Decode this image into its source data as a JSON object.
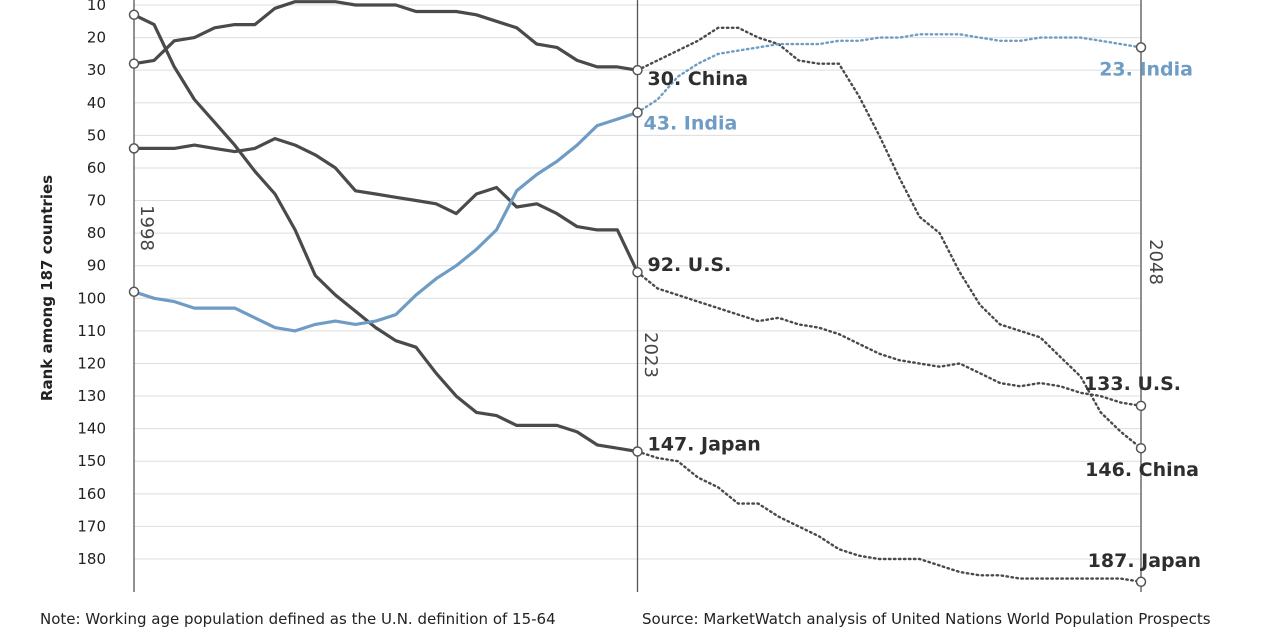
{
  "chart_data": {
    "type": "line",
    "ylabel": "Rank among 187 countries",
    "ylim": [
      1,
      187
    ],
    "y_inverted": true,
    "y_ticks": [
      10,
      20,
      30,
      40,
      50,
      60,
      70,
      80,
      90,
      100,
      110,
      120,
      130,
      140,
      150,
      160,
      170,
      180
    ],
    "xlim": [
      1998,
      2048
    ],
    "marker_years": [
      {
        "label": "1998",
        "x": 1998
      },
      {
        "label": "2023",
        "x": 2023
      },
      {
        "label": "2048",
        "x": 2048
      }
    ],
    "colors": {
      "grey": "#4a4a4a",
      "blue": "#6f9cc4"
    },
    "series": [
      {
        "color": "grey",
        "historical": [
          [
            1998,
            13
          ],
          [
            1999,
            16
          ],
          [
            2000,
            29
          ],
          [
            2001,
            39
          ],
          [
            2002,
            46
          ],
          [
            2003,
            53
          ],
          [
            2004,
            61
          ],
          [
            2005,
            68
          ],
          [
            2006,
            79
          ],
          [
            2007,
            93
          ],
          [
            2008,
            99
          ],
          [
            2009,
            104
          ],
          [
            2010,
            109
          ],
          [
            2011,
            113
          ],
          [
            2012,
            115
          ],
          [
            2013,
            123
          ],
          [
            2014,
            130
          ],
          [
            2015,
            135
          ],
          [
            2016,
            136
          ],
          [
            2017,
            139
          ],
          [
            2018,
            139
          ],
          [
            2019,
            139
          ],
          [
            2020,
            141
          ],
          [
            2021,
            145
          ],
          [
            2022,
            146
          ],
          [
            2023,
            147
          ]
        ],
        "projected": [
          [
            2023,
            147
          ],
          [
            2024,
            149
          ],
          [
            2025,
            150
          ],
          [
            2026,
            155
          ],
          [
            2027,
            158
          ],
          [
            2028,
            163
          ],
          [
            2029,
            163
          ],
          [
            2030,
            167
          ],
          [
            2031,
            170
          ],
          [
            2032,
            173
          ],
          [
            2033,
            177
          ],
          [
            2034,
            179
          ],
          [
            2035,
            180
          ],
          [
            2036,
            180
          ],
          [
            2037,
            180
          ],
          [
            2038,
            182
          ],
          [
            2039,
            184
          ],
          [
            2040,
            185
          ],
          [
            2041,
            185
          ],
          [
            2042,
            186
          ],
          [
            2043,
            186
          ],
          [
            2044,
            186
          ],
          [
            2045,
            186
          ],
          [
            2046,
            186
          ],
          [
            2047,
            186
          ],
          [
            2048,
            187
          ]
        ]
      },
      {
        "color": "grey",
        "historical": [
          [
            1998,
            28
          ],
          [
            1999,
            27
          ],
          [
            2000,
            21
          ],
          [
            2001,
            20
          ],
          [
            2002,
            17
          ],
          [
            2003,
            16
          ],
          [
            2004,
            16
          ],
          [
            2005,
            11
          ],
          [
            2006,
            9
          ],
          [
            2007,
            9
          ],
          [
            2008,
            9
          ],
          [
            2009,
            10
          ],
          [
            2010,
            10
          ],
          [
            2011,
            10
          ],
          [
            2012,
            12
          ],
          [
            2013,
            12
          ],
          [
            2014,
            12
          ],
          [
            2015,
            13
          ],
          [
            2016,
            15
          ],
          [
            2017,
            17
          ],
          [
            2018,
            22
          ],
          [
            2019,
            23
          ],
          [
            2020,
            27
          ],
          [
            2021,
            29
          ],
          [
            2022,
            29
          ],
          [
            2023,
            30
          ]
        ],
        "projected": [
          [
            2023,
            30
          ],
          [
            2024,
            27
          ],
          [
            2025,
            24
          ],
          [
            2026,
            21
          ],
          [
            2027,
            17
          ],
          [
            2028,
            17
          ],
          [
            2029,
            20
          ],
          [
            2030,
            22
          ],
          [
            2031,
            27
          ],
          [
            2032,
            28
          ],
          [
            2033,
            28
          ],
          [
            2034,
            38
          ],
          [
            2035,
            50
          ],
          [
            2036,
            63
          ],
          [
            2037,
            75
          ],
          [
            2038,
            80
          ],
          [
            2039,
            92
          ],
          [
            2040,
            102
          ],
          [
            2041,
            108
          ],
          [
            2042,
            110
          ],
          [
            2043,
            112
          ],
          [
            2044,
            118
          ],
          [
            2045,
            124
          ],
          [
            2046,
            135
          ],
          [
            2047,
            141
          ],
          [
            2048,
            146
          ]
        ]
      },
      {
        "color": "grey",
        "historical": [
          [
            1998,
            54
          ],
          [
            1999,
            54
          ],
          [
            2000,
            54
          ],
          [
            2001,
            53
          ],
          [
            2002,
            54
          ],
          [
            2003,
            55
          ],
          [
            2004,
            54
          ],
          [
            2005,
            51
          ],
          [
            2006,
            53
          ],
          [
            2007,
            56
          ],
          [
            2008,
            60
          ],
          [
            2009,
            67
          ],
          [
            2010,
            68
          ],
          [
            2011,
            69
          ],
          [
            2012,
            70
          ],
          [
            2013,
            71
          ],
          [
            2014,
            74
          ],
          [
            2015,
            68
          ],
          [
            2016,
            66
          ],
          [
            2017,
            72
          ],
          [
            2018,
            71
          ],
          [
            2019,
            74
          ],
          [
            2020,
            78
          ],
          [
            2021,
            79
          ],
          [
            2022,
            79
          ],
          [
            2023,
            92
          ]
        ],
        "projected": [
          [
            2023,
            92
          ],
          [
            2024,
            97
          ],
          [
            2025,
            99
          ],
          [
            2026,
            101
          ],
          [
            2027,
            103
          ],
          [
            2028,
            105
          ],
          [
            2029,
            107
          ],
          [
            2030,
            106
          ],
          [
            2031,
            108
          ],
          [
            2032,
            109
          ],
          [
            2033,
            111
          ],
          [
            2034,
            114
          ],
          [
            2035,
            117
          ],
          [
            2036,
            119
          ],
          [
            2037,
            120
          ],
          [
            2038,
            121
          ],
          [
            2039,
            120
          ],
          [
            2040,
            123
          ],
          [
            2041,
            126
          ],
          [
            2042,
            127
          ],
          [
            2043,
            126
          ],
          [
            2044,
            127
          ],
          [
            2045,
            129
          ],
          [
            2046,
            130
          ],
          [
            2047,
            132
          ],
          [
            2048,
            133
          ]
        ]
      },
      {
        "color": "blue",
        "historical": [
          [
            1998,
            98
          ],
          [
            1999,
            100
          ],
          [
            2000,
            101
          ],
          [
            2001,
            103
          ],
          [
            2002,
            103
          ],
          [
            2003,
            103
          ],
          [
            2004,
            106
          ],
          [
            2005,
            109
          ],
          [
            2006,
            110
          ],
          [
            2007,
            108
          ],
          [
            2008,
            107
          ],
          [
            2009,
            108
          ],
          [
            2010,
            107
          ],
          [
            2011,
            105
          ],
          [
            2012,
            99
          ],
          [
            2013,
            94
          ],
          [
            2014,
            90
          ],
          [
            2015,
            85
          ],
          [
            2016,
            79
          ],
          [
            2017,
            67
          ],
          [
            2018,
            62
          ],
          [
            2019,
            58
          ],
          [
            2020,
            53
          ],
          [
            2021,
            47
          ],
          [
            2022,
            45
          ],
          [
            2023,
            43
          ]
        ],
        "projected": [
          [
            2023,
            43
          ],
          [
            2024,
            39
          ],
          [
            2025,
            32
          ],
          [
            2026,
            28
          ],
          [
            2027,
            25
          ],
          [
            2028,
            24
          ],
          [
            2029,
            23
          ],
          [
            2030,
            22
          ],
          [
            2031,
            22
          ],
          [
            2032,
            22
          ],
          [
            2033,
            21
          ],
          [
            2034,
            21
          ],
          [
            2035,
            20
          ],
          [
            2036,
            20
          ],
          [
            2037,
            19
          ],
          [
            2038,
            19
          ],
          [
            2039,
            19
          ],
          [
            2040,
            20
          ],
          [
            2041,
            21
          ],
          [
            2042,
            21
          ],
          [
            2043,
            20
          ],
          [
            2044,
            20
          ],
          [
            2045,
            20
          ],
          [
            2046,
            21
          ],
          [
            2047,
            22
          ],
          [
            2048,
            23
          ]
        ]
      }
    ],
    "end_labels": [
      {
        "text": "30. China",
        "year": 2023,
        "rank": 30,
        "color": "grey"
      },
      {
        "text": "43. India",
        "year": 2023,
        "rank": 43,
        "color": "blue"
      },
      {
        "text": "92. U.S.",
        "year": 2023,
        "rank": 92,
        "color": "grey"
      },
      {
        "text": "147. Japan",
        "year": 2023,
        "rank": 147,
        "color": "grey"
      },
      {
        "text": "23. India",
        "year": 2048,
        "rank": 23,
        "color": "blue"
      },
      {
        "text": "133. U.S.",
        "year": 2048,
        "rank": 133,
        "color": "grey"
      },
      {
        "text": "146. China",
        "year": 2048,
        "rank": 146,
        "color": "grey"
      },
      {
        "text": "187. Japan",
        "year": 2048,
        "rank": 187,
        "color": "grey"
      }
    ],
    "start_markers": [
      {
        "year": 1998,
        "rank": 13
      },
      {
        "year": 1998,
        "rank": 28
      },
      {
        "year": 1998,
        "rank": 54
      },
      {
        "year": 1998,
        "rank": 98
      }
    ]
  },
  "footer": {
    "note": "Note: Working age population defined as the U.N. definition of 15-64",
    "source": "Source: MarketWatch analysis of United Nations World Population Prospects"
  }
}
